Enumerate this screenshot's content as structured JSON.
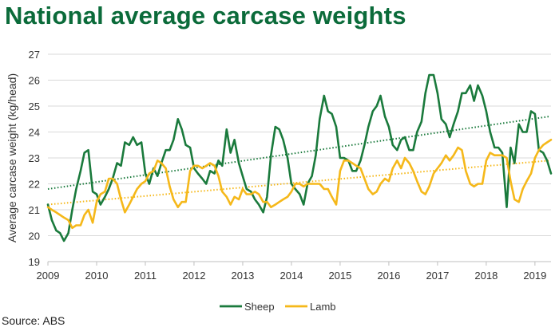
{
  "title": "National average carcase weights",
  "source": "Source: ABS",
  "chart_data": {
    "type": "line",
    "title": "National average carcase weights",
    "xlabel": "",
    "ylabel": "Average carcase weight (kg/head)",
    "xlim": [
      2009,
      2019.33
    ],
    "ylim": [
      19,
      27
    ],
    "x_ticks": [
      "2009",
      "2010",
      "2011",
      "2012",
      "2013",
      "2014",
      "2015",
      "2016",
      "2017",
      "2018",
      "2019"
    ],
    "y_ticks": [
      "19",
      "20",
      "21",
      "22",
      "23",
      "24",
      "25",
      "26",
      "27"
    ],
    "grid": "horizontal",
    "legend": "bottom-center",
    "series": [
      {
        "name": "Sheep",
        "color": "#1a7a3c",
        "trendline": {
          "style": "dotted",
          "start": [
            2009,
            21.8
          ],
          "end": [
            2019.3,
            24.6
          ]
        },
        "points": [
          [
            2009.0,
            21.2
          ],
          [
            2009.08,
            20.6
          ],
          [
            2009.17,
            20.2
          ],
          [
            2009.25,
            20.1
          ],
          [
            2009.33,
            19.8
          ],
          [
            2009.42,
            20.1
          ],
          [
            2009.5,
            21.0
          ],
          [
            2009.58,
            21.8
          ],
          [
            2009.67,
            22.5
          ],
          [
            2009.75,
            23.2
          ],
          [
            2009.83,
            23.3
          ],
          [
            2009.92,
            21.7
          ],
          [
            2010.0,
            21.6
          ],
          [
            2010.08,
            21.2
          ],
          [
            2010.17,
            21.5
          ],
          [
            2010.25,
            21.8
          ],
          [
            2010.33,
            22.2
          ],
          [
            2010.42,
            22.8
          ],
          [
            2010.5,
            22.7
          ],
          [
            2010.58,
            23.6
          ],
          [
            2010.67,
            23.5
          ],
          [
            2010.75,
            23.8
          ],
          [
            2010.83,
            23.5
          ],
          [
            2010.92,
            23.6
          ],
          [
            2011.0,
            22.4
          ],
          [
            2011.08,
            22.0
          ],
          [
            2011.17,
            22.6
          ],
          [
            2011.25,
            22.3
          ],
          [
            2011.33,
            22.8
          ],
          [
            2011.42,
            23.3
          ],
          [
            2011.5,
            23.3
          ],
          [
            2011.58,
            23.7
          ],
          [
            2011.67,
            24.5
          ],
          [
            2011.75,
            24.1
          ],
          [
            2011.83,
            23.5
          ],
          [
            2011.92,
            23.4
          ],
          [
            2012.0,
            22.6
          ],
          [
            2012.08,
            22.4
          ],
          [
            2012.17,
            22.2
          ],
          [
            2012.25,
            22.0
          ],
          [
            2012.33,
            22.5
          ],
          [
            2012.42,
            22.4
          ],
          [
            2012.5,
            22.9
          ],
          [
            2012.58,
            22.7
          ],
          [
            2012.67,
            24.1
          ],
          [
            2012.75,
            23.2
          ],
          [
            2012.83,
            23.7
          ],
          [
            2012.92,
            22.8
          ],
          [
            2013.0,
            22.3
          ],
          [
            2013.08,
            21.8
          ],
          [
            2013.17,
            21.7
          ],
          [
            2013.25,
            21.4
          ],
          [
            2013.33,
            21.2
          ],
          [
            2013.42,
            20.9
          ],
          [
            2013.5,
            21.5
          ],
          [
            2013.58,
            23.1
          ],
          [
            2013.67,
            24.2
          ],
          [
            2013.75,
            24.1
          ],
          [
            2013.83,
            23.7
          ],
          [
            2013.92,
            23.0
          ],
          [
            2014.0,
            22.0
          ],
          [
            2014.08,
            21.8
          ],
          [
            2014.17,
            21.6
          ],
          [
            2014.25,
            21.2
          ],
          [
            2014.33,
            22.0
          ],
          [
            2014.42,
            22.3
          ],
          [
            2014.5,
            23.1
          ],
          [
            2014.58,
            24.5
          ],
          [
            2014.67,
            25.4
          ],
          [
            2014.75,
            24.8
          ],
          [
            2014.83,
            24.7
          ],
          [
            2014.92,
            24.2
          ],
          [
            2015.0,
            23.0
          ],
          [
            2015.08,
            23.0
          ],
          [
            2015.17,
            22.9
          ],
          [
            2015.25,
            22.5
          ],
          [
            2015.33,
            22.5
          ],
          [
            2015.42,
            22.9
          ],
          [
            2015.5,
            23.5
          ],
          [
            2015.58,
            24.2
          ],
          [
            2015.67,
            24.8
          ],
          [
            2015.75,
            25.0
          ],
          [
            2015.83,
            25.4
          ],
          [
            2015.92,
            24.6
          ],
          [
            2016.0,
            24.2
          ],
          [
            2016.08,
            23.5
          ],
          [
            2016.17,
            23.3
          ],
          [
            2016.25,
            23.7
          ],
          [
            2016.33,
            23.8
          ],
          [
            2016.42,
            23.3
          ],
          [
            2016.5,
            23.3
          ],
          [
            2016.58,
            24.0
          ],
          [
            2016.67,
            24.4
          ],
          [
            2016.75,
            25.5
          ],
          [
            2016.83,
            26.2
          ],
          [
            2016.92,
            26.2
          ],
          [
            2017.0,
            25.5
          ],
          [
            2017.08,
            24.5
          ],
          [
            2017.17,
            24.3
          ],
          [
            2017.25,
            23.8
          ],
          [
            2017.33,
            24.3
          ],
          [
            2017.42,
            24.8
          ],
          [
            2017.5,
            25.5
          ],
          [
            2017.58,
            25.5
          ],
          [
            2017.67,
            25.8
          ],
          [
            2017.75,
            25.2
          ],
          [
            2017.83,
            25.8
          ],
          [
            2017.92,
            25.4
          ],
          [
            2018.0,
            24.8
          ],
          [
            2018.08,
            24.0
          ],
          [
            2018.17,
            23.4
          ],
          [
            2018.25,
            23.4
          ],
          [
            2018.33,
            23.2
          ],
          [
            2018.42,
            21.1
          ],
          [
            2018.5,
            23.4
          ],
          [
            2018.58,
            22.8
          ],
          [
            2018.67,
            24.3
          ],
          [
            2018.75,
            24.0
          ],
          [
            2018.83,
            24.0
          ],
          [
            2018.92,
            24.8
          ],
          [
            2019.0,
            24.7
          ],
          [
            2019.08,
            23.3
          ],
          [
            2019.17,
            23.2
          ],
          [
            2019.25,
            22.9
          ],
          [
            2019.33,
            22.4
          ]
        ]
      },
      {
        "name": "Lamb",
        "color": "#f5b81a",
        "trendline": {
          "style": "dotted",
          "start": [
            2009,
            21.2
          ],
          "end": [
            2019.3,
            22.9
          ]
        },
        "points": [
          [
            2009.0,
            21.1
          ],
          [
            2009.08,
            21.0
          ],
          [
            2009.17,
            20.9
          ],
          [
            2009.25,
            20.8
          ],
          [
            2009.33,
            20.7
          ],
          [
            2009.42,
            20.6
          ],
          [
            2009.5,
            20.3
          ],
          [
            2009.58,
            20.4
          ],
          [
            2009.67,
            20.4
          ],
          [
            2009.75,
            20.8
          ],
          [
            2009.83,
            21.0
          ],
          [
            2009.92,
            20.5
          ],
          [
            2010.0,
            21.3
          ],
          [
            2010.08,
            21.6
          ],
          [
            2010.17,
            21.7
          ],
          [
            2010.25,
            22.2
          ],
          [
            2010.33,
            22.2
          ],
          [
            2010.42,
            22.0
          ],
          [
            2010.5,
            21.4
          ],
          [
            2010.58,
            20.9
          ],
          [
            2010.67,
            21.2
          ],
          [
            2010.75,
            21.5
          ],
          [
            2010.83,
            21.8
          ],
          [
            2010.92,
            22.0
          ],
          [
            2011.0,
            22.1
          ],
          [
            2011.08,
            22.4
          ],
          [
            2011.17,
            22.5
          ],
          [
            2011.25,
            22.9
          ],
          [
            2011.33,
            22.8
          ],
          [
            2011.42,
            22.6
          ],
          [
            2011.5,
            21.9
          ],
          [
            2011.58,
            21.4
          ],
          [
            2011.67,
            21.1
          ],
          [
            2011.75,
            21.3
          ],
          [
            2011.83,
            21.3
          ],
          [
            2011.92,
            22.5
          ],
          [
            2012.0,
            22.7
          ],
          [
            2012.08,
            22.7
          ],
          [
            2012.17,
            22.6
          ],
          [
            2012.25,
            22.7
          ],
          [
            2012.33,
            22.8
          ],
          [
            2012.42,
            22.7
          ],
          [
            2012.5,
            22.3
          ],
          [
            2012.58,
            21.7
          ],
          [
            2012.67,
            21.5
          ],
          [
            2012.75,
            21.2
          ],
          [
            2012.83,
            21.5
          ],
          [
            2012.92,
            21.4
          ],
          [
            2013.0,
            21.8
          ],
          [
            2013.08,
            21.6
          ],
          [
            2013.17,
            21.6
          ],
          [
            2013.25,
            21.7
          ],
          [
            2013.33,
            21.6
          ],
          [
            2013.42,
            21.3
          ],
          [
            2013.5,
            21.3
          ],
          [
            2013.58,
            21.1
          ],
          [
            2013.67,
            21.2
          ],
          [
            2013.75,
            21.3
          ],
          [
            2013.83,
            21.4
          ],
          [
            2013.92,
            21.5
          ],
          [
            2014.0,
            21.7
          ],
          [
            2014.08,
            22.0
          ],
          [
            2014.17,
            22.0
          ],
          [
            2014.25,
            21.9
          ],
          [
            2014.33,
            22.0
          ],
          [
            2014.42,
            22.0
          ],
          [
            2014.5,
            22.0
          ],
          [
            2014.58,
            22.0
          ],
          [
            2014.67,
            21.8
          ],
          [
            2014.75,
            21.8
          ],
          [
            2014.83,
            21.5
          ],
          [
            2014.92,
            21.2
          ],
          [
            2015.0,
            22.5
          ],
          [
            2015.08,
            22.9
          ],
          [
            2015.17,
            22.9
          ],
          [
            2015.25,
            22.8
          ],
          [
            2015.33,
            22.7
          ],
          [
            2015.42,
            22.6
          ],
          [
            2015.5,
            22.2
          ],
          [
            2015.58,
            21.8
          ],
          [
            2015.67,
            21.6
          ],
          [
            2015.75,
            21.7
          ],
          [
            2015.83,
            22.0
          ],
          [
            2015.92,
            22.2
          ],
          [
            2016.0,
            22.1
          ],
          [
            2016.08,
            22.6
          ],
          [
            2016.17,
            22.9
          ],
          [
            2016.25,
            22.6
          ],
          [
            2016.33,
            23.0
          ],
          [
            2016.42,
            22.8
          ],
          [
            2016.5,
            22.5
          ],
          [
            2016.58,
            22.1
          ],
          [
            2016.67,
            21.7
          ],
          [
            2016.75,
            21.6
          ],
          [
            2016.83,
            21.9
          ],
          [
            2016.92,
            22.4
          ],
          [
            2017.0,
            22.6
          ],
          [
            2017.08,
            22.8
          ],
          [
            2017.17,
            23.1
          ],
          [
            2017.25,
            22.9
          ],
          [
            2017.33,
            23.1
          ],
          [
            2017.42,
            23.4
          ],
          [
            2017.5,
            23.3
          ],
          [
            2017.58,
            22.5
          ],
          [
            2017.67,
            22.0
          ],
          [
            2017.75,
            21.9
          ],
          [
            2017.83,
            22.0
          ],
          [
            2017.92,
            22.0
          ],
          [
            2018.0,
            22.9
          ],
          [
            2018.08,
            23.2
          ],
          [
            2018.17,
            23.1
          ],
          [
            2018.25,
            23.1
          ],
          [
            2018.33,
            23.1
          ],
          [
            2018.42,
            23.0
          ],
          [
            2018.5,
            22.1
          ],
          [
            2018.58,
            21.4
          ],
          [
            2018.67,
            21.3
          ],
          [
            2018.75,
            21.8
          ],
          [
            2018.83,
            22.1
          ],
          [
            2018.92,
            22.4
          ],
          [
            2019.0,
            23.0
          ],
          [
            2019.08,
            23.3
          ],
          [
            2019.17,
            23.5
          ],
          [
            2019.25,
            23.6
          ],
          [
            2019.33,
            23.7
          ]
        ]
      }
    ]
  }
}
